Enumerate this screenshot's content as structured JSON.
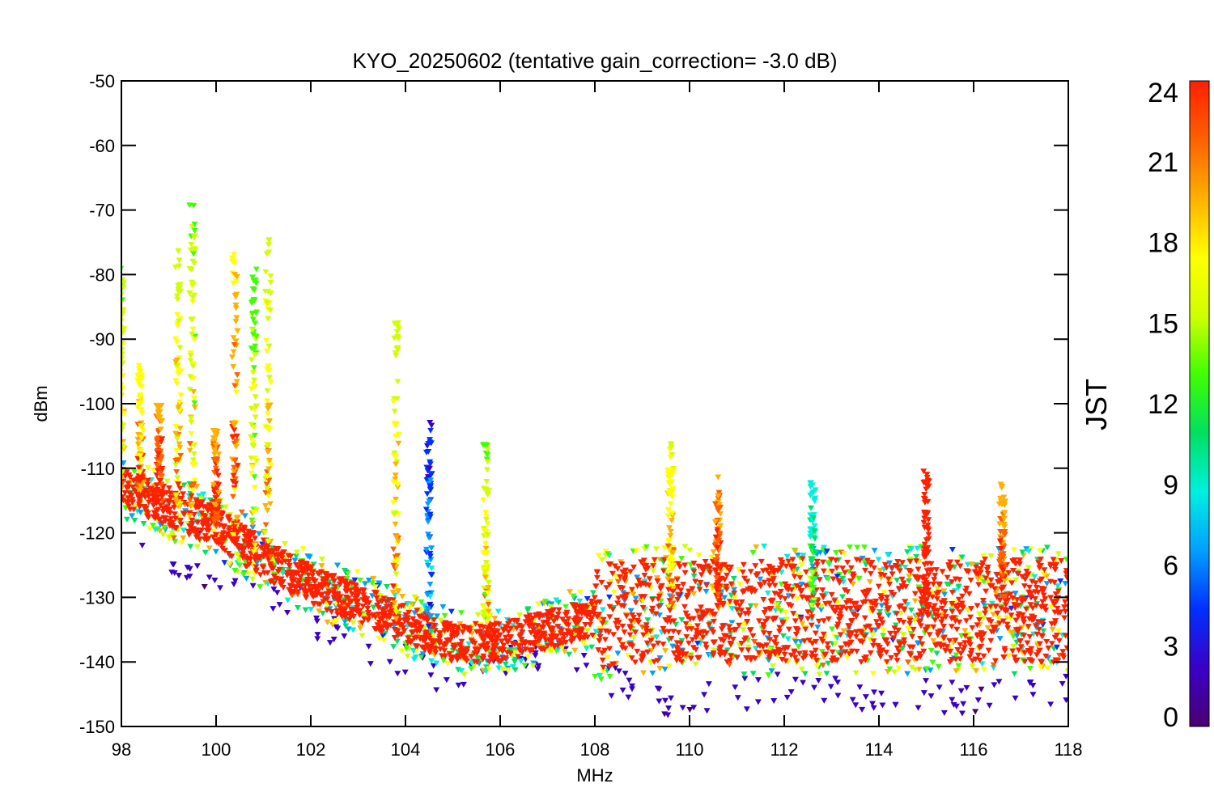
{
  "chart_data": {
    "type": "scatter",
    "title": "KYO_20250602 (tentative gain_correction= -3.0 dB)",
    "xlabel": "MHz",
    "ylabel": "dBm",
    "xlim": [
      98,
      118
    ],
    "ylim": [
      -150,
      -50
    ],
    "xticks": [
      "98",
      "100",
      "102",
      "104",
      "106",
      "108",
      "110",
      "112",
      "114",
      "116",
      "118"
    ],
    "yticks": [
      "-50",
      "-60",
      "-70",
      "-80",
      "-90",
      "-100",
      "-110",
      "-120",
      "-130",
      "-140",
      "-150"
    ],
    "marker": "downward triangle",
    "colorbar": {
      "label": "JST",
      "range": [
        0,
        24
      ],
      "ticks": [
        "0",
        "3",
        "6",
        "9",
        "12",
        "15",
        "18",
        "21",
        "24"
      ],
      "colormap": [
        "#4a0070",
        "#3a00c8",
        "#0030ff",
        "#00a0ff",
        "#00f0e0",
        "#00e060",
        "#40ff00",
        "#d0ff00",
        "#ffff00",
        "#ffb000",
        "#ff6000",
        "#ff2000"
      ]
    },
    "noise_floor_latest": [
      [
        98.0,
        -113
      ],
      [
        99.0,
        -116
      ],
      [
        100.0,
        -119
      ],
      [
        101.0,
        -124
      ],
      [
        102.0,
        -128
      ],
      [
        103.0,
        -131
      ],
      [
        104.0,
        -134
      ],
      [
        105.0,
        -137
      ],
      [
        106.0,
        -137
      ],
      [
        107.0,
        -135
      ],
      [
        108.0,
        -133
      ],
      [
        109.0,
        -132
      ],
      [
        110.0,
        -132
      ],
      [
        111.0,
        -132
      ],
      [
        112.0,
        -132
      ],
      [
        113.0,
        -132
      ],
      [
        114.0,
        -132
      ],
      [
        115.0,
        -132
      ],
      [
        116.0,
        -132
      ],
      [
        117.0,
        -132
      ],
      [
        118.0,
        -132
      ]
    ],
    "noise_floor_early": [
      [
        98.0,
        -118
      ],
      [
        99.0,
        -124
      ],
      [
        100.0,
        -128
      ],
      [
        101.0,
        -130
      ],
      [
        102.0,
        -134
      ],
      [
        103.0,
        -137
      ],
      [
        104.0,
        -140
      ],
      [
        105.0,
        -143
      ],
      [
        105.5,
        -142
      ],
      [
        106.0,
        -140
      ],
      [
        107.0,
        -139
      ],
      [
        108.0,
        -141
      ],
      [
        109.0,
        -146
      ],
      [
        110.0,
        -146
      ],
      [
        111.0,
        -145
      ],
      [
        112.0,
        -144
      ],
      [
        113.0,
        -145
      ],
      [
        114.0,
        -145
      ],
      [
        115.0,
        -145
      ],
      [
        116.0,
        -146
      ],
      [
        117.0,
        -145
      ],
      [
        118.0,
        -144
      ]
    ],
    "stations": [
      {
        "mhz": 98.0,
        "peak_dbm": -79,
        "peak_hour": 14
      },
      {
        "mhz": 98.4,
        "peak_dbm": -94,
        "peak_hour": 17
      },
      {
        "mhz": 98.8,
        "peak_dbm": -100,
        "peak_hour": 20
      },
      {
        "mhz": 99.2,
        "peak_dbm": -76,
        "peak_hour": 15
      },
      {
        "mhz": 99.5,
        "peak_dbm": -69,
        "peak_hour": 14
      },
      {
        "mhz": 100.0,
        "peak_dbm": -104,
        "peak_hour": 20
      },
      {
        "mhz": 100.4,
        "peak_dbm": -75,
        "peak_hour": 18
      },
      {
        "mhz": 100.8,
        "peak_dbm": -79,
        "peak_hour": 13
      },
      {
        "mhz": 101.1,
        "peak_dbm": -74,
        "peak_hour": 15
      },
      {
        "mhz": 103.8,
        "peak_dbm": -87,
        "peak_hour": 15
      },
      {
        "mhz": 104.5,
        "peak_dbm": -102,
        "peak_hour": 3
      },
      {
        "mhz": 105.7,
        "peak_dbm": -106,
        "peak_hour": 14
      },
      {
        "mhz": 109.6,
        "peak_dbm": -106,
        "peak_hour": 16
      },
      {
        "mhz": 110.6,
        "peak_dbm": -111,
        "peak_hour": 20
      },
      {
        "mhz": 112.6,
        "peak_dbm": -112,
        "peak_hour": 8
      },
      {
        "mhz": 115.0,
        "peak_dbm": -110,
        "peak_hour": 23
      },
      {
        "mhz": 116.6,
        "peak_dbm": -112,
        "peak_hour": 19
      }
    ]
  }
}
